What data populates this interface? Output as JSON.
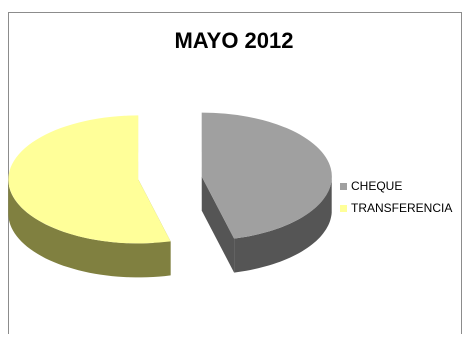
{
  "chart_data": {
    "type": "pie",
    "style": "3d-exploded",
    "title": "MAYO 2012",
    "categories": [
      "CHEQUE",
      "TRANSFERENCIA"
    ],
    "values": [
      46,
      54
    ],
    "colors": [
      "#a0a0a0",
      "#ffff99"
    ],
    "side_colors": [
      "#555555",
      "#808040"
    ],
    "legend_position": "right"
  }
}
